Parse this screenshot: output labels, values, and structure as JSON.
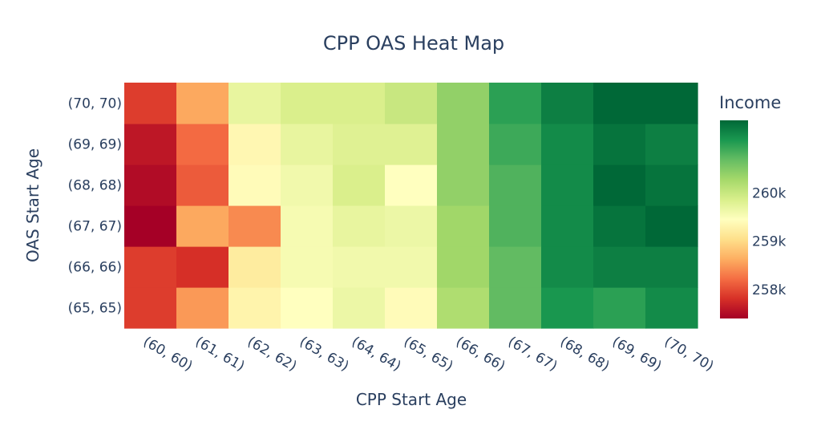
{
  "chart_data": {
    "type": "heatmap",
    "title": "CPP OAS Heat Map",
    "xlabel": "CPP Start Age",
    "ylabel": "OAS Start Age",
    "x_categories": [
      "(60, 60)",
      "(61, 61)",
      "(62, 62)",
      "(63, 63)",
      "(64, 64)",
      "(65, 65)",
      "(66, 66)",
      "(67, 67)",
      "(68, 68)",
      "(69, 69)",
      "(70, 70)"
    ],
    "y_categories": [
      "(65, 65)",
      "(66, 66)",
      "(67, 67)",
      "(68, 68)",
      "(69, 69)",
      "(70, 70)"
    ],
    "z": [
      [
        257900,
        258500,
        259300,
        259450,
        259650,
        259400,
        260200,
        260700,
        261100,
        261000,
        261200
      ],
      [
        257900,
        257800,
        259200,
        259550,
        259600,
        259600,
        260300,
        260700,
        261200,
        261300,
        261300
      ],
      [
        257400,
        258600,
        258400,
        259550,
        259700,
        259650,
        260300,
        260800,
        261200,
        261400,
        261500
      ],
      [
        257500,
        258100,
        259400,
        259600,
        259850,
        259450,
        260400,
        260800,
        261200,
        261500,
        261400
      ],
      [
        257600,
        258200,
        259350,
        259700,
        259800,
        259800,
        260400,
        260900,
        261200,
        261400,
        261300
      ],
      [
        257900,
        258600,
        259700,
        259850,
        259850,
        260000,
        260400,
        261000,
        261300,
        261500,
        261500
      ]
    ],
    "colorscale": "RdYlGn",
    "zmin": 257400,
    "zmax": 261500,
    "colorbar": {
      "title": "Income",
      "tickvals": [
        258000,
        259000,
        260000
      ],
      "ticktext": [
        "258k",
        "259k",
        "260k"
      ]
    }
  }
}
